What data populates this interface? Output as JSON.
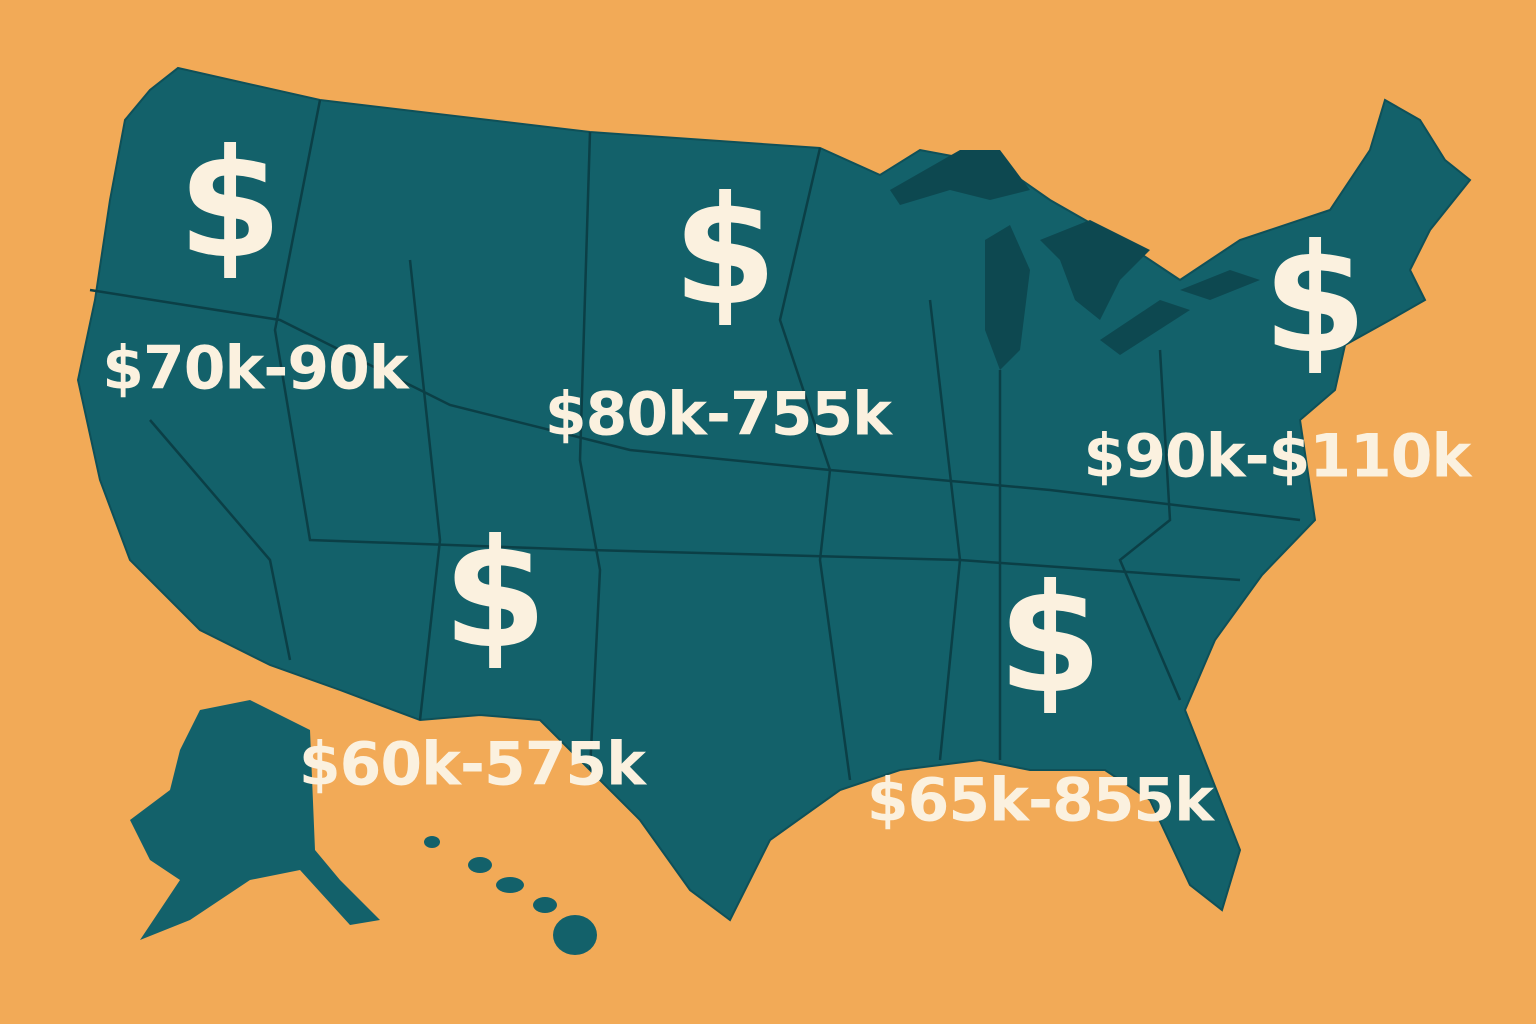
{
  "regions": [
    {
      "symbol": "$",
      "label": "$70k-90k"
    },
    {
      "symbol": "$",
      "label": "$80k-755k"
    },
    {
      "symbol": "$",
      "label": "$90k-$110k"
    },
    {
      "symbol": "$",
      "label": "$60k-575k"
    },
    {
      "symbol": "$",
      "label": "$65k-855k"
    }
  ]
}
